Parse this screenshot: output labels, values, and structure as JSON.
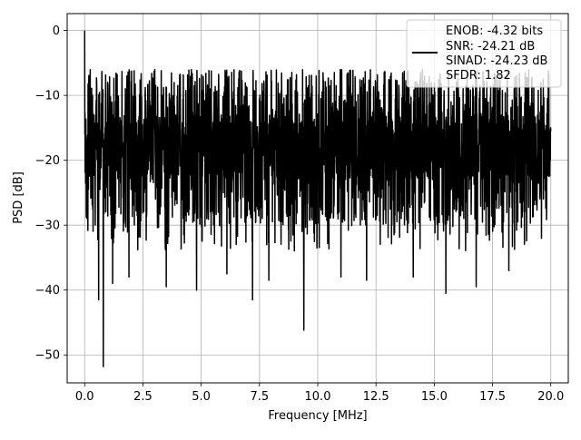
{
  "chart_data": {
    "type": "line",
    "xlabel": "Frequency [MHz]",
    "ylabel": "PSD [dB]",
    "xlim": [
      -0.75,
      20.75
    ],
    "ylim": [
      -54.3,
      2.6
    ],
    "x_ticks": [
      0.0,
      2.5,
      5.0,
      7.5,
      10.0,
      12.5,
      15.0,
      17.5,
      20.0
    ],
    "x_tick_labels": [
      "0.0",
      "2.5",
      "5.0",
      "7.5",
      "10.0",
      "12.5",
      "15.0",
      "17.5",
      "20.0"
    ],
    "y_ticks": [
      0,
      -10,
      -20,
      -30,
      -40,
      -50
    ],
    "y_tick_labels": [
      "0",
      "−10",
      "−20",
      "−30",
      "−40",
      "−50"
    ],
    "grid": true,
    "legend_position": "top-right",
    "series": [
      {
        "color": "#000000",
        "description": "noisy power spectral density spanning 0 to 20 MHz; peak 0 dB at 0 MHz, mostly between about -30 and -5 dB",
        "x_range": [
          0.0,
          20.0
        ],
        "peak": {
          "x": 0.0,
          "y": 0.0
        },
        "typical_range": [
          -30,
          -5
        ],
        "notable_dips": [
          {
            "x": 0.6,
            "y": -41.5
          },
          {
            "x": 0.8,
            "y": -51.8
          },
          {
            "x": 1.2,
            "y": -39.0
          },
          {
            "x": 1.9,
            "y": -38.0
          },
          {
            "x": 3.5,
            "y": -39.5
          },
          {
            "x": 4.8,
            "y": -40.0
          },
          {
            "x": 6.1,
            "y": -37.5
          },
          {
            "x": 7.2,
            "y": -41.5
          },
          {
            "x": 7.9,
            "y": -38.5
          },
          {
            "x": 9.4,
            "y": -46.2
          },
          {
            "x": 11.0,
            "y": -38.0
          },
          {
            "x": 12.1,
            "y": -38.5
          },
          {
            "x": 14.1,
            "y": -38.0
          },
          {
            "x": 15.5,
            "y": -40.5
          },
          {
            "x": 16.8,
            "y": -39.5
          },
          {
            "x": 18.2,
            "y": -37.0
          }
        ]
      }
    ],
    "legend": [
      "ENOB: -4.32 bits",
      "SNR: -24.21 dB",
      "SINAD: -24.23 dB",
      "SFDR: 1.82"
    ]
  }
}
